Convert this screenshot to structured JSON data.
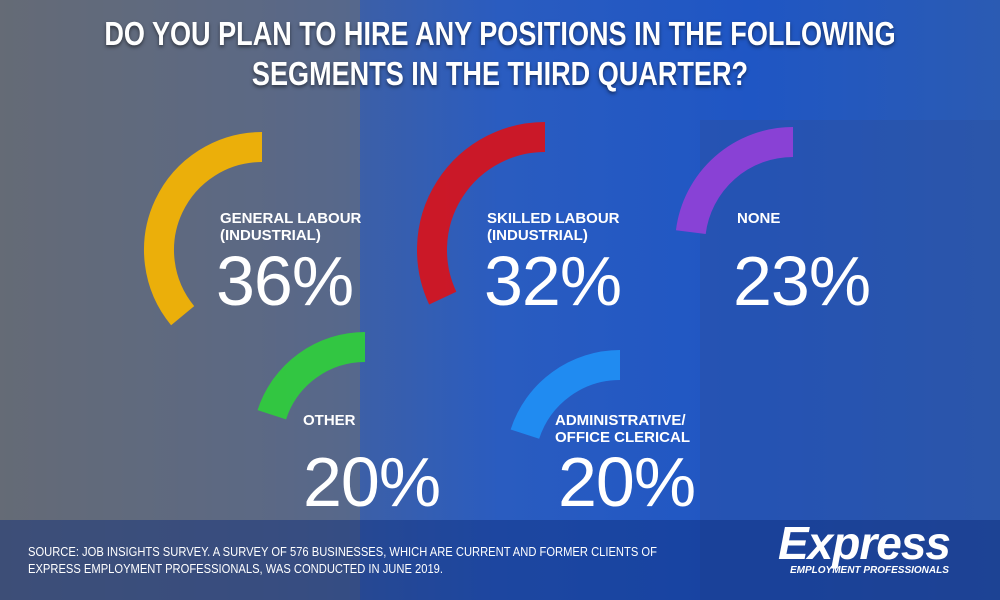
{
  "chart_data": {
    "type": "gauge",
    "title": "DO YOU PLAN TO HIRE ANY POSITIONS IN THE FOLLOWING\nSEGMENTS IN THE THIRD QUARTER?",
    "categories": [
      "GENERAL LABOUR\n(INDUSTRIAL)",
      "SKILLED LABOUR\n(INDUSTRIAL)",
      "NONE",
      "OTHER",
      "ADMINISTRATIVE/\nOFFICE CLERICAL"
    ],
    "values": [
      36,
      32,
      23,
      20,
      20
    ],
    "value_labels": [
      "36%",
      "32%",
      "23%",
      "20%",
      "20%"
    ],
    "colors": [
      "#f7b500",
      "#d8121b",
      "#9140d8",
      "#2fce3c",
      "#1f8ff5"
    ],
    "source": "SOURCE: JOB INSIGHTS SURVEY. A SURVEY OF 576 BUSINESSES, WHICH ARE CURRENT AND FORMER CLIENTS OF\nEXPRESS EMPLOYMENT PROFESSIONALS, WAS CONDUCTED IN JUNE 2019."
  },
  "logo": {
    "name": "Express",
    "tagline": "EMPLOYMENT PROFESSIONALS"
  }
}
